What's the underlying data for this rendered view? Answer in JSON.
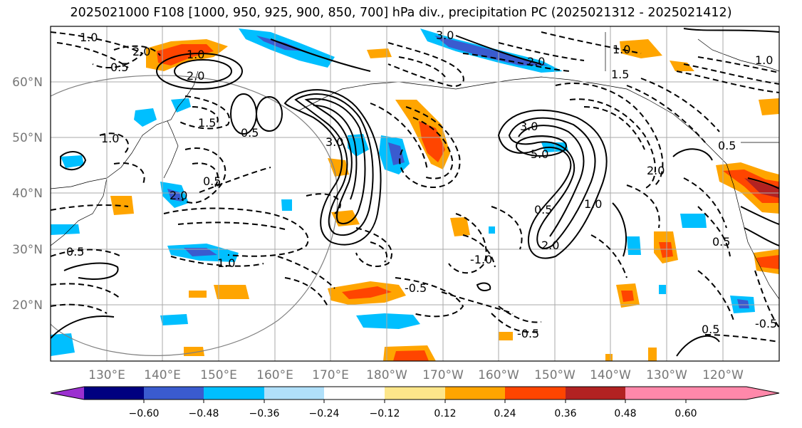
{
  "title": "2025021000 F108 [1000, 950, 925, 900, 850, 700] hPa div., precipitation PC (2025021312 - 2025021412)",
  "lat_labels": [
    "60°N",
    "50°N",
    "40°N",
    "30°N",
    "20°N"
  ],
  "lon_labels": [
    "130°E",
    "140°E",
    "150°E",
    "160°E",
    "170°E",
    "180°W",
    "170°W",
    "160°W",
    "150°W",
    "140°W",
    "130°W",
    "120°W"
  ],
  "contour_labels": [
    "1.0",
    "2.0",
    "0.5",
    "1.0",
    "2.0",
    "1.5",
    "0.5",
    "1.0",
    "2.0",
    "0.5",
    "3.0",
    "2.0",
    "1.0",
    "1.5",
    "3.0",
    "2.0",
    "1.0",
    "3.0",
    "5.0",
    "1.0",
    "0.5",
    "2.0",
    "0.5",
    "1.0",
    "0.5",
    "-0.5",
    "-1.0",
    "-0.5",
    "0.5",
    "-0.5",
    "0.5"
  ],
  "colorbar": {
    "ticks": [
      "−0.60",
      "−0.48",
      "−0.36",
      "−0.24",
      "−0.12",
      "0.12",
      "0.24",
      "0.36",
      "0.48",
      "0.60"
    ],
    "colors": [
      "#9b30d0",
      "#000080",
      "#3a5bcf",
      "#00bfff",
      "#b0e0fa",
      "#ffffff",
      "#fde68a",
      "#ffa500",
      "#ff4500",
      "#b22222",
      "#ff88aa"
    ]
  }
}
